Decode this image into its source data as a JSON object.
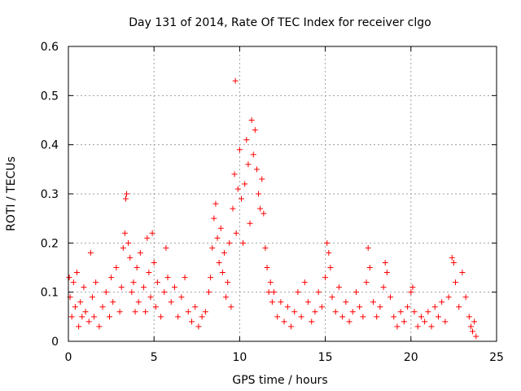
{
  "chart_data": {
    "type": "scatter",
    "title": "Day 131 of 2014, Rate Of TEC Index for receiver clgo",
    "xlabel": "GPS time / hours",
    "ylabel": "ROTI / TECUs",
    "xlim": [
      0,
      25
    ],
    "ylim": [
      0,
      0.6
    ],
    "xticks": [
      0,
      5,
      10,
      15,
      20,
      25
    ],
    "yticks": [
      0,
      0.1,
      0.2,
      0.3,
      0.4,
      0.5,
      0.6
    ],
    "xtick_labels": [
      "0",
      "5",
      "10",
      "15",
      "20",
      "25"
    ],
    "ytick_labels": [
      "0",
      "0.1",
      "0.2",
      "0.3",
      "0.4",
      "0.5",
      "0.6"
    ],
    "grid": true,
    "marker": "+",
    "color": "#ff0000",
    "series": [
      {
        "name": "ROTI",
        "points": [
          [
            0.05,
            0.13
          ],
          [
            0.1,
            0.09
          ],
          [
            0.2,
            0.05
          ],
          [
            0.3,
            0.12
          ],
          [
            0.4,
            0.07
          ],
          [
            0.5,
            0.14
          ],
          [
            0.6,
            0.03
          ],
          [
            0.7,
            0.08
          ],
          [
            0.8,
            0.05
          ],
          [
            0.9,
            0.11
          ],
          [
            1.0,
            0.06
          ],
          [
            1.2,
            0.04
          ],
          [
            1.3,
            0.18
          ],
          [
            1.4,
            0.09
          ],
          [
            1.5,
            0.05
          ],
          [
            1.6,
            0.12
          ],
          [
            1.8,
            0.03
          ],
          [
            2.0,
            0.07
          ],
          [
            2.2,
            0.1
          ],
          [
            2.4,
            0.05
          ],
          [
            2.5,
            0.13
          ],
          [
            2.6,
            0.08
          ],
          [
            2.8,
            0.15
          ],
          [
            3.0,
            0.06
          ],
          [
            3.1,
            0.11
          ],
          [
            3.2,
            0.19
          ],
          [
            3.3,
            0.22
          ],
          [
            3.35,
            0.29
          ],
          [
            3.4,
            0.3
          ],
          [
            3.5,
            0.2
          ],
          [
            3.6,
            0.17
          ],
          [
            3.7,
            0.1
          ],
          [
            3.8,
            0.12
          ],
          [
            3.9,
            0.06
          ],
          [
            4.0,
            0.15
          ],
          [
            4.1,
            0.08
          ],
          [
            4.2,
            0.18
          ],
          [
            4.4,
            0.11
          ],
          [
            4.5,
            0.06
          ],
          [
            4.6,
            0.21
          ],
          [
            4.7,
            0.14
          ],
          [
            4.8,
            0.09
          ],
          [
            4.9,
            0.22
          ],
          [
            5.0,
            0.16
          ],
          [
            5.1,
            0.07
          ],
          [
            5.2,
            0.12
          ],
          [
            5.4,
            0.05
          ],
          [
            5.6,
            0.1
          ],
          [
            5.7,
            0.19
          ],
          [
            5.8,
            0.13
          ],
          [
            6.0,
            0.08
          ],
          [
            6.2,
            0.11
          ],
          [
            6.4,
            0.05
          ],
          [
            6.6,
            0.09
          ],
          [
            6.8,
            0.13
          ],
          [
            7.0,
            0.06
          ],
          [
            7.2,
            0.04
          ],
          [
            7.4,
            0.07
          ],
          [
            7.6,
            0.03
          ],
          [
            7.8,
            0.05
          ],
          [
            8.0,
            0.06
          ],
          [
            8.2,
            0.1
          ],
          [
            8.3,
            0.13
          ],
          [
            8.4,
            0.19
          ],
          [
            8.5,
            0.25
          ],
          [
            8.6,
            0.28
          ],
          [
            8.7,
            0.21
          ],
          [
            8.8,
            0.16
          ],
          [
            8.9,
            0.23
          ],
          [
            9.0,
            0.14
          ],
          [
            9.1,
            0.18
          ],
          [
            9.2,
            0.09
          ],
          [
            9.3,
            0.12
          ],
          [
            9.4,
            0.2
          ],
          [
            9.5,
            0.07
          ],
          [
            9.6,
            0.27
          ],
          [
            9.7,
            0.34
          ],
          [
            9.75,
            0.53
          ],
          [
            9.8,
            0.22
          ],
          [
            9.9,
            0.31
          ],
          [
            10.0,
            0.39
          ],
          [
            10.1,
            0.29
          ],
          [
            10.2,
            0.2
          ],
          [
            10.3,
            0.32
          ],
          [
            10.4,
            0.41
          ],
          [
            10.5,
            0.36
          ],
          [
            10.6,
            0.24
          ],
          [
            10.7,
            0.45
          ],
          [
            10.8,
            0.38
          ],
          [
            10.9,
            0.43
          ],
          [
            11.0,
            0.35
          ],
          [
            11.1,
            0.3
          ],
          [
            11.2,
            0.27
          ],
          [
            11.3,
            0.33
          ],
          [
            11.4,
            0.26
          ],
          [
            11.5,
            0.19
          ],
          [
            11.6,
            0.15
          ],
          [
            11.7,
            0.1
          ],
          [
            11.8,
            0.12
          ],
          [
            11.9,
            0.08
          ],
          [
            12.0,
            0.1
          ],
          [
            12.2,
            0.05
          ],
          [
            12.4,
            0.08
          ],
          [
            12.6,
            0.04
          ],
          [
            12.8,
            0.07
          ],
          [
            13.0,
            0.03
          ],
          [
            13.2,
            0.06
          ],
          [
            13.4,
            0.1
          ],
          [
            13.6,
            0.05
          ],
          [
            13.8,
            0.12
          ],
          [
            14.0,
            0.08
          ],
          [
            14.2,
            0.04
          ],
          [
            14.4,
            0.06
          ],
          [
            14.6,
            0.1
          ],
          [
            14.8,
            0.07
          ],
          [
            15.0,
            0.13
          ],
          [
            15.1,
            0.2
          ],
          [
            15.2,
            0.18
          ],
          [
            15.3,
            0.15
          ],
          [
            15.4,
            0.09
          ],
          [
            15.6,
            0.06
          ],
          [
            15.8,
            0.11
          ],
          [
            16.0,
            0.05
          ],
          [
            16.2,
            0.08
          ],
          [
            16.4,
            0.04
          ],
          [
            16.6,
            0.06
          ],
          [
            16.8,
            0.1
          ],
          [
            17.0,
            0.07
          ],
          [
            17.2,
            0.05
          ],
          [
            17.4,
            0.12
          ],
          [
            17.5,
            0.19
          ],
          [
            17.6,
            0.15
          ],
          [
            17.8,
            0.08
          ],
          [
            18.0,
            0.05
          ],
          [
            18.2,
            0.07
          ],
          [
            18.4,
            0.11
          ],
          [
            18.5,
            0.16
          ],
          [
            18.6,
            0.14
          ],
          [
            18.8,
            0.09
          ],
          [
            19.0,
            0.05
          ],
          [
            19.2,
            0.03
          ],
          [
            19.4,
            0.06
          ],
          [
            19.6,
            0.04
          ],
          [
            19.8,
            0.07
          ],
          [
            20.0,
            0.1
          ],
          [
            20.1,
            0.11
          ],
          [
            20.2,
            0.06
          ],
          [
            20.4,
            0.03
          ],
          [
            20.6,
            0.05
          ],
          [
            20.8,
            0.04
          ],
          [
            21.0,
            0.06
          ],
          [
            21.2,
            0.03
          ],
          [
            21.4,
            0.07
          ],
          [
            21.6,
            0.05
          ],
          [
            21.8,
            0.08
          ],
          [
            22.0,
            0.04
          ],
          [
            22.2,
            0.09
          ],
          [
            22.4,
            0.17
          ],
          [
            22.5,
            0.16
          ],
          [
            22.6,
            0.12
          ],
          [
            22.8,
            0.07
          ],
          [
            23.0,
            0.14
          ],
          [
            23.2,
            0.09
          ],
          [
            23.4,
            0.05
          ],
          [
            23.5,
            0.03
          ],
          [
            23.6,
            0.02
          ],
          [
            23.7,
            0.04
          ],
          [
            23.8,
            0.01
          ]
        ]
      }
    ]
  }
}
